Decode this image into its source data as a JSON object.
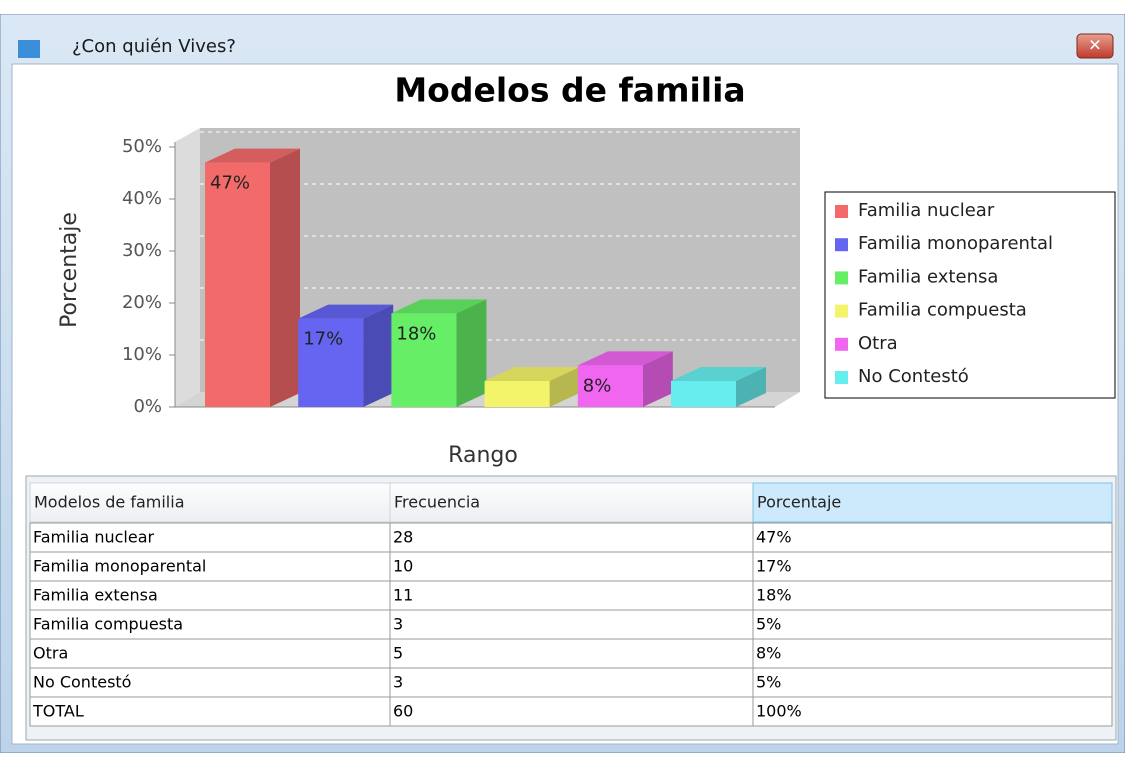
{
  "window": {
    "title": "¿Con quién Vives?"
  },
  "chart_data": {
    "type": "bar3d",
    "title": "Modelos de familia",
    "y_label": "Porcentaje",
    "x_label": "Rango",
    "ylim": [
      0,
      50
    ],
    "yticks": [
      {
        "value": 0,
        "label": "0%"
      },
      {
        "value": 10,
        "label": "10%"
      },
      {
        "value": 20,
        "label": "20%"
      },
      {
        "value": 30,
        "label": "30%"
      },
      {
        "value": 40,
        "label": "40%"
      },
      {
        "value": 50,
        "label": "50%"
      }
    ],
    "grid": true,
    "legend": "right",
    "series": [
      {
        "name": "Familia nuclear",
        "color": "#f26a6a",
        "values": [
          47
        ],
        "value_labels": [
          "47%"
        ]
      },
      {
        "name": "Familia monoparental",
        "color": "#6565f2",
        "values": [
          17
        ],
        "value_labels": [
          "17%"
        ]
      },
      {
        "name": "Familia extensa",
        "color": "#66ee66",
        "values": [
          18
        ],
        "value_labels": [
          "18%"
        ]
      },
      {
        "name": "Familia compuesta",
        "color": "#f4f46a",
        "values": [
          5
        ]
      },
      {
        "name": "Otra",
        "color": "#f066f0",
        "values": [
          8
        ],
        "value_labels": [
          "8%"
        ]
      },
      {
        "name": "No Contestó",
        "color": "#66eeee",
        "values": [
          5
        ]
      }
    ]
  },
  "table": {
    "header": [
      "Modelos de familia",
      "Frecuencia",
      "Porcentaje"
    ],
    "rows": [
      [
        "Familia nuclear",
        "28",
        "47%"
      ],
      [
        "Familia monoparental",
        "10",
        "17%"
      ],
      [
        "Familia extensa",
        "11",
        "18%"
      ],
      [
        "Familia compuesta",
        "3",
        "5%"
      ],
      [
        "Otra",
        "5",
        "8%"
      ],
      [
        "No Contestó",
        "3",
        "5%"
      ],
      [
        "TOTAL",
        "60",
        "100%"
      ]
    ]
  }
}
